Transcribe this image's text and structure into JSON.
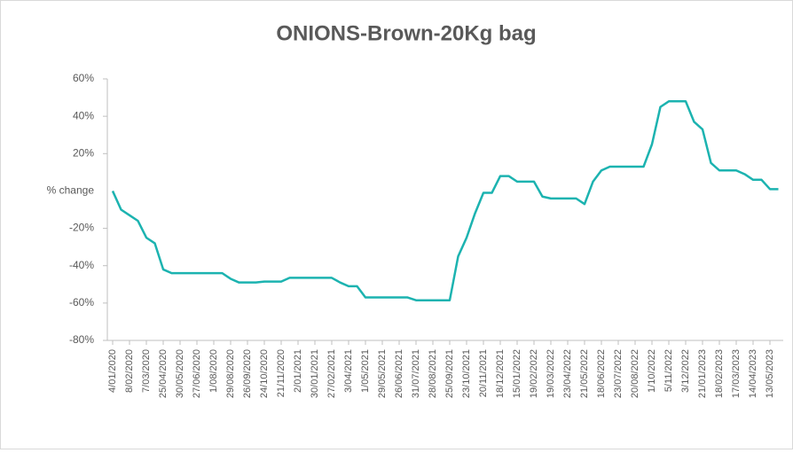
{
  "chart_data": {
    "type": "line",
    "title": "ONIONS-Brown-20Kg bag",
    "y_label": "% change",
    "categories": [
      "4/01/2020",
      null,
      "8/02/2020",
      null,
      "7/03/2020",
      null,
      "25/04/2020",
      null,
      "30/05/2020",
      null,
      "27/06/2020",
      null,
      "1/08/2020",
      null,
      "29/08/2020",
      null,
      "26/09/2020",
      null,
      "24/10/2020",
      null,
      "21/11/2020",
      null,
      "2/01/2021",
      null,
      "30/01/2021",
      null,
      "27/02/2021",
      null,
      "3/04/2021",
      null,
      "1/05/2021",
      null,
      "29/05/2021",
      null,
      "26/06/2021",
      null,
      "31/07/2021",
      null,
      "28/08/2021",
      null,
      "25/09/2021",
      null,
      "23/10/2021",
      null,
      "20/11/2021",
      null,
      "18/12/2021",
      null,
      "15/01/2022",
      null,
      "19/02/2022",
      null,
      "19/03/2022",
      null,
      "23/04/2022",
      null,
      "21/05/2022",
      null,
      "18/06/2022",
      null,
      "23/07/2022",
      null,
      "20/08/2022",
      null,
      "1/10/2022",
      null,
      "5/11/2022",
      null,
      "3/12/2022",
      null,
      "21/01/2023",
      null,
      "18/02/2023",
      null,
      "17/03/2023",
      null,
      "14/04/2023",
      null,
      "13/05/2023",
      null
    ],
    "values": [
      0,
      -10,
      -13,
      -16,
      -25,
      -28,
      -42,
      -44,
      -44,
      -44,
      -44,
      -44,
      -44,
      -44,
      -47,
      -49,
      -49,
      -49,
      -48.5,
      -48.5,
      -48.5,
      -46.5,
      -46.5,
      -46.5,
      -46.5,
      -46.5,
      -46.5,
      -49,
      -51,
      -51,
      -57,
      -57,
      -57,
      -57,
      -57,
      -57,
      -58.5,
      -58.5,
      -58.5,
      -58.5,
      -58.5,
      -35,
      -25,
      -12,
      -1,
      -1,
      8,
      8,
      5,
      5,
      5,
      -3,
      -4,
      -4,
      -4,
      -4,
      -7,
      5,
      11,
      13,
      13,
      13,
      13,
      13,
      25,
      45,
      48,
      48,
      48,
      37,
      33,
      15,
      11,
      11,
      11,
      9,
      6,
      6,
      1,
      1
    ],
    "color": "#1cb3b0",
    "ylim": [
      -80,
      60
    ],
    "yticks": [
      {
        "value": 60,
        "label": "60%"
      },
      {
        "value": 40,
        "label": "40%"
      },
      {
        "value": 20,
        "label": "20%"
      },
      {
        "value": -20,
        "label": "-20%"
      },
      {
        "value": -40,
        "label": "-40%"
      },
      {
        "value": -60,
        "label": "-60%"
      },
      {
        "value": -80,
        "label": "-80%"
      }
    ]
  }
}
